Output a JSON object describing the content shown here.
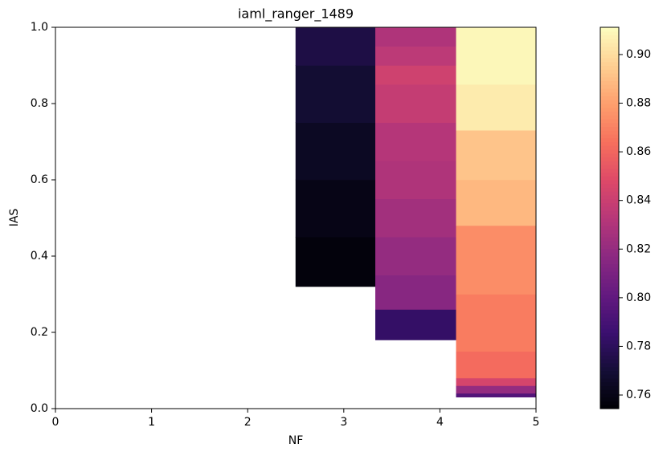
{
  "chart_data": {
    "type": "heatmap",
    "title": "iaml_ranger_1489",
    "x_label": "NF",
    "y_label": "IAS",
    "xlim": [
      0,
      5
    ],
    "xticks": [
      0,
      1,
      2,
      3,
      4,
      5
    ],
    "ylim": [
      0,
      1
    ],
    "yticks": [
      {
        "value": 0,
        "label": "0.0"
      },
      0.2,
      0.4,
      0.6,
      0.8,
      {
        "value": 1,
        "label": "1.0"
      }
    ],
    "colormap": "magma",
    "clim": [
      0.7544,
      0.9112
    ],
    "cticks": [
      0.76,
      0.78,
      {
        "value": 0.8,
        "label": "0.80"
      },
      0.82,
      0.84,
      0.86,
      0.88,
      {
        "value": 0.9,
        "label": "0.90"
      }
    ],
    "cells": [
      {
        "x": [
          2.5,
          3.33
        ],
        "y": [
          0.32,
          0.45
        ],
        "value": 0.757
      },
      {
        "x": [
          2.5,
          3.33
        ],
        "y": [
          0.45,
          0.6
        ],
        "value": 0.76
      },
      {
        "x": [
          2.5,
          3.33
        ],
        "y": [
          0.6,
          0.75
        ],
        "value": 0.764
      },
      {
        "x": [
          2.5,
          3.33
        ],
        "y": [
          0.75,
          0.9
        ],
        "value": 0.769
      },
      {
        "x": [
          2.5,
          3.33
        ],
        "y": [
          0.9,
          1
        ],
        "value": 0.774
      },
      {
        "x": [
          3.33,
          4.17
        ],
        "y": [
          0.18,
          0.26
        ],
        "value": 0.783
      },
      {
        "x": [
          3.33,
          4.17
        ],
        "y": [
          0.26,
          0.35
        ],
        "value": 0.815
      },
      {
        "x": [
          3.33,
          4.17
        ],
        "y": [
          0.35,
          0.45
        ],
        "value": 0.82
      },
      {
        "x": [
          3.33,
          4.17
        ],
        "y": [
          0.45,
          0.55
        ],
        "value": 0.825
      },
      {
        "x": [
          3.33,
          4.17
        ],
        "y": [
          0.55,
          0.65
        ],
        "value": 0.83
      },
      {
        "x": [
          3.33,
          4.17
        ],
        "y": [
          0.65,
          0.75
        ],
        "value": 0.832
      },
      {
        "x": [
          3.33,
          4.17
        ],
        "y": [
          0.75,
          0.85
        ],
        "value": 0.838
      },
      {
        "x": [
          3.33,
          4.17
        ],
        "y": [
          0.85,
          0.9
        ],
        "value": 0.842
      },
      {
        "x": [
          3.33,
          4.17
        ],
        "y": [
          0.9,
          0.95
        ],
        "value": 0.835
      },
      {
        "x": [
          3.33,
          4.17
        ],
        "y": [
          0.95,
          1
        ],
        "value": 0.83
      },
      {
        "x": [
          4.17,
          5
        ],
        "y": [
          0.03,
          0.04
        ],
        "value": 0.795
      },
      {
        "x": [
          4.17,
          5
        ],
        "y": [
          0.04,
          0.06
        ],
        "value": 0.82
      },
      {
        "x": [
          4.17,
          5
        ],
        "y": [
          0.06,
          0.08
        ],
        "value": 0.845
      },
      {
        "x": [
          4.17,
          5
        ],
        "y": [
          0.08,
          0.15
        ],
        "value": 0.862
      },
      {
        "x": [
          4.17,
          5
        ],
        "y": [
          0.15,
          0.3
        ],
        "value": 0.868
      },
      {
        "x": [
          4.17,
          5
        ],
        "y": [
          0.3,
          0.48
        ],
        "value": 0.874
      },
      {
        "x": [
          4.17,
          5
        ],
        "y": [
          0.48,
          0.6
        ],
        "value": 0.888
      },
      {
        "x": [
          4.17,
          5
        ],
        "y": [
          0.6,
          0.73
        ],
        "value": 0.892
      },
      {
        "x": [
          4.17,
          5
        ],
        "y": [
          0.73,
          0.85
        ],
        "value": 0.905
      },
      {
        "x": [
          4.17,
          5
        ],
        "y": [
          0.85,
          1
        ],
        "value": 0.909
      }
    ]
  }
}
